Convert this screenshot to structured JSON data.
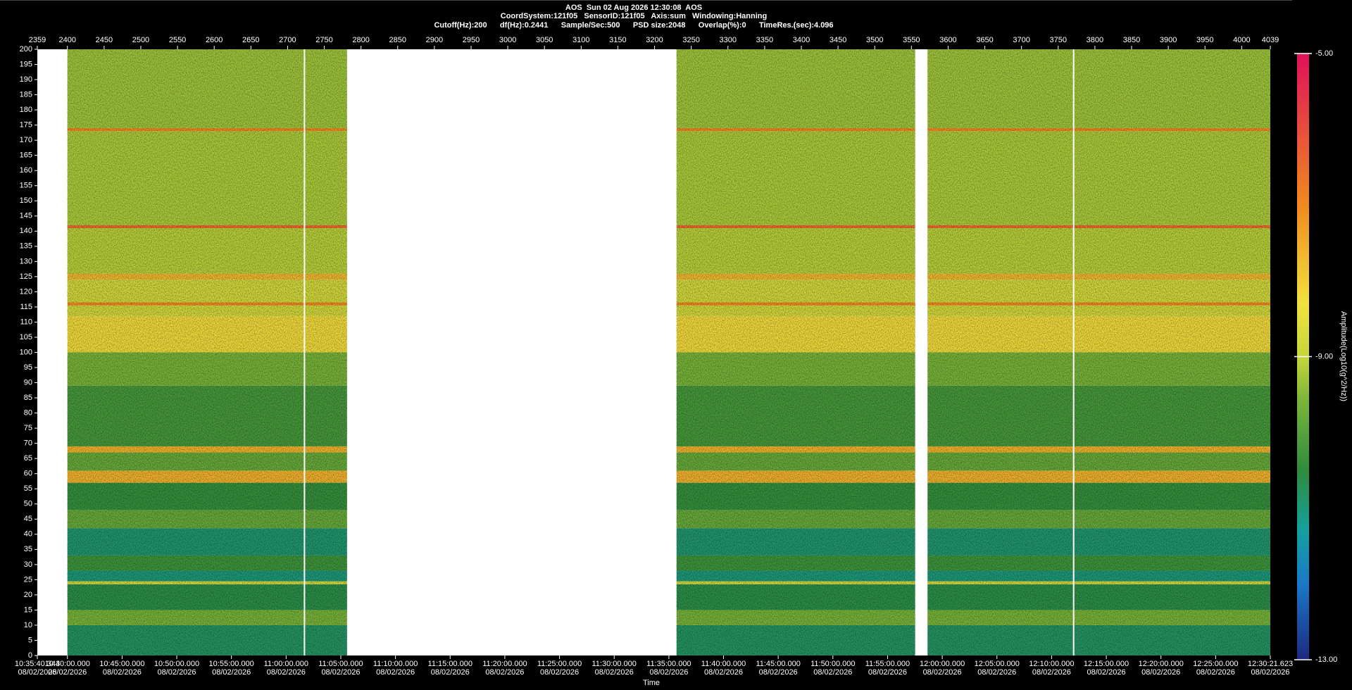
{
  "chart_data": {
    "type": "spectrogram",
    "title": "AOS  Sun 02 Aug 2026 12:30:08  AOS",
    "subtitle": [
      "CoordSystem:121f05   SensorID:121f05   Axis:sum   Windowing:Hanning",
      "Cutoff(Hz):200      df(Hz):0.2441      Sample/Sec:500      PSD size:2048      Overlap(%):0      TimeRes.(sec):4.096"
    ],
    "xlabel": "Time",
    "colorbar_label": "Amplitude(Log10(g^2/Hz))",
    "xlim": [
      2359,
      4039
    ],
    "xticks": [
      2359,
      2400,
      2450,
      2500,
      2550,
      2600,
      2650,
      2700,
      2750,
      2800,
      2850,
      2900,
      2950,
      3000,
      3050,
      3100,
      3150,
      3200,
      3250,
      3300,
      3350,
      3400,
      3450,
      3500,
      3550,
      3600,
      3650,
      3700,
      3750,
      3800,
      3850,
      3900,
      3950,
      4000,
      4039
    ],
    "time_ticks": [
      {
        "value": 2359,
        "label": "10:35:40.343",
        "date": "08/02/2026"
      },
      {
        "value": 2400,
        "label": "10:40:00.000",
        "date": "08/02/2026"
      },
      {
        "value": 2474.5,
        "label": "10:45:00.000",
        "date": "08/02/2026"
      },
      {
        "value": 2549,
        "label": "10:50:00.000",
        "date": "08/02/2026"
      },
      {
        "value": 2623.5,
        "label": "10:55:00.000",
        "date": "08/02/2026"
      },
      {
        "value": 2698,
        "label": "11:00:00.000",
        "date": "08/02/2026"
      },
      {
        "value": 2772.5,
        "label": "11:05:00.000",
        "date": "08/02/2026"
      },
      {
        "value": 2847,
        "label": "11:10:00.000",
        "date": "08/02/2026"
      },
      {
        "value": 2921.5,
        "label": "11:15:00.000",
        "date": "08/02/2026"
      },
      {
        "value": 2996,
        "label": "11:20:00.000",
        "date": "08/02/2026"
      },
      {
        "value": 3070.5,
        "label": "11:25:00.000",
        "date": "08/02/2026"
      },
      {
        "value": 3145,
        "label": "11:30:00.000",
        "date": "08/02/2026"
      },
      {
        "value": 3219.5,
        "label": "11:35:00.000",
        "date": "08/02/2026"
      },
      {
        "value": 3294,
        "label": "11:40:00.000",
        "date": "08/02/2026"
      },
      {
        "value": 3368.5,
        "label": "11:45:00.000",
        "date": "08/02/2026"
      },
      {
        "value": 3443,
        "label": "11:50:00.000",
        "date": "08/02/2026"
      },
      {
        "value": 3517.5,
        "label": "11:55:00.000",
        "date": "08/02/2026"
      },
      {
        "value": 3592,
        "label": "12:00:00.000",
        "date": "08/02/2026"
      },
      {
        "value": 3666.5,
        "label": "12:05:00.000",
        "date": "08/02/2026"
      },
      {
        "value": 3741,
        "label": "12:10:00.000",
        "date": "08/02/2026"
      },
      {
        "value": 3815.5,
        "label": "12:15:00.000",
        "date": "08/02/2026"
      },
      {
        "value": 3890,
        "label": "12:20:00.000",
        "date": "08/02/2026"
      },
      {
        "value": 3964.5,
        "label": "12:25:00.000",
        "date": "08/02/2026"
      },
      {
        "value": 4039,
        "label": "12:30:21.623",
        "date": "08/02/2026"
      }
    ],
    "ylim": [
      0,
      200
    ],
    "yticks": [
      0,
      5,
      10,
      15,
      20,
      25,
      30,
      35,
      40,
      45,
      50,
      55,
      60,
      65,
      70,
      75,
      80,
      85,
      90,
      95,
      100,
      105,
      110,
      115,
      120,
      125,
      130,
      135,
      140,
      145,
      150,
      155,
      160,
      165,
      170,
      175,
      180,
      185,
      190,
      195,
      200
    ],
    "clim": [
      -13,
      -5
    ],
    "cticks": [
      {
        "value": -5,
        "label": "-5.00"
      },
      {
        "value": -9,
        "label": "-9.00"
      },
      {
        "value": -13,
        "label": "-13.00"
      }
    ],
    "colorscale": [
      [
        -13,
        "#1c2a80"
      ],
      [
        -12,
        "#1a78c8"
      ],
      [
        -11.3,
        "#14a0a0"
      ],
      [
        -10.5,
        "#2e8c3c"
      ],
      [
        -9.6,
        "#78b43a"
      ],
      [
        -9,
        "#c6d63a"
      ],
      [
        -8.3,
        "#f2e23e"
      ],
      [
        -7,
        "#f08a1e"
      ],
      [
        -5,
        "#e0105a"
      ]
    ],
    "segments": [
      [
        2400,
        2781
      ],
      [
        3230,
        3555
      ],
      [
        3572,
        4039
      ]
    ],
    "gaps": [
      2723,
      3771
    ],
    "bands": [
      [
        0,
        10,
        -10.8
      ],
      [
        10,
        15,
        -9.6
      ],
      [
        15,
        23.5,
        -10.6
      ],
      [
        23.5,
        24.5,
        -8.8
      ],
      [
        24.5,
        28,
        -11
      ],
      [
        28,
        33,
        -10.3
      ],
      [
        33,
        42,
        -10.9
      ],
      [
        42,
        48,
        -9.8
      ],
      [
        48,
        57,
        -10.4
      ],
      [
        57,
        61,
        -7.6
      ],
      [
        61,
        67,
        -9.8
      ],
      [
        67,
        69,
        -7.6
      ],
      [
        69,
        89,
        -10.2
      ],
      [
        89,
        100,
        -9.6
      ],
      [
        100,
        112,
        -8.2
      ],
      [
        112,
        115.5,
        -8.8
      ],
      [
        115.5,
        116.5,
        -7
      ],
      [
        116.5,
        124,
        -8.8
      ],
      [
        124,
        126,
        -7.7
      ],
      [
        126,
        141,
        -9.1
      ],
      [
        141,
        142,
        -6.5
      ],
      [
        142,
        173,
        -9.2
      ],
      [
        173,
        174,
        -7
      ],
      [
        174,
        200,
        -9.3
      ]
    ]
  }
}
